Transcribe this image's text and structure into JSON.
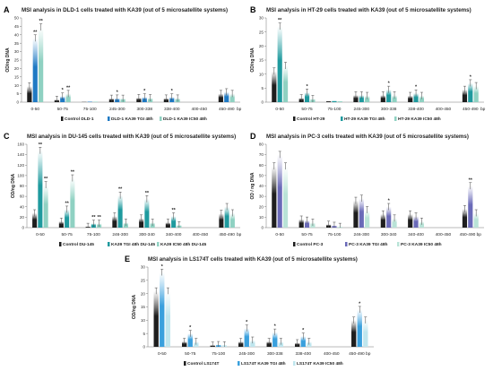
{
  "chart_data": [
    {
      "panel": "A",
      "type": "bar",
      "title": "MSI analysis in DLD-1 cells treated with KA39 (out of 5 microsatellite systems)",
      "ylabel": "OD/ng DNA",
      "xunit": "bp",
      "ylim": [
        0,
        50
      ],
      "yticks": [
        "0",
        "5",
        "10",
        "15",
        "20",
        "25",
        "30",
        "35",
        "40",
        "45",
        "50"
      ],
      "categories": [
        "0-50",
        "50-75",
        "75-100",
        "245-300",
        "300-338",
        "338-400",
        "400-450",
        "450-490"
      ],
      "series": [
        {
          "name": "Control DLD-1",
          "values": [
            9.5,
            1.5,
            0.2,
            2.2,
            2.6,
            2.3,
            0,
            5.0
          ]
        },
        {
          "name": "DLD-1 KA39 TGI 48h",
          "values": [
            38,
            3.5,
            0.3,
            2.3,
            3.0,
            3.0,
            0,
            6.0
          ]
        },
        {
          "name": "DLD-1 KA39 IC50 48h",
          "values": [
            44.5,
            5.0,
            0.3,
            2.2,
            2.5,
            2.3,
            0,
            5.0
          ]
        }
      ],
      "annotations": [
        {
          "cat": 0,
          "series": 1,
          "text": "**"
        },
        {
          "cat": 0,
          "series": 2,
          "text": "**"
        },
        {
          "cat": 1,
          "series": 1,
          "text": "*"
        },
        {
          "cat": 1,
          "series": 2,
          "text": "**"
        },
        {
          "cat": 3,
          "series": 1,
          "text": "*"
        },
        {
          "cat": 4,
          "series": 1,
          "text": "*"
        },
        {
          "cat": 5,
          "series": 1,
          "text": "*"
        }
      ],
      "colors": [
        "#1e1e1e",
        "#1f7ac4",
        "#8fd1c2"
      ]
    },
    {
      "panel": "B",
      "type": "bar",
      "title": "MSI analysis in HT-29 cells treated with KA39 (out of 5 microsatellite systems)",
      "ylabel": "OD/ng DNA",
      "xunit": "bp",
      "ylim": [
        0,
        30
      ],
      "yticks": [
        "0",
        "5",
        "10",
        "15",
        "20",
        "25",
        "30"
      ],
      "categories": [
        "0-50",
        "50-75",
        "75-100",
        "245-300",
        "300-338",
        "338-400",
        "400-450",
        "450-490"
      ],
      "series": [
        {
          "name": "Control HT-29",
          "values": [
            11,
            1.5,
            0.4,
            2.5,
            2.5,
            2.3,
            0,
            4.5
          ]
        },
        {
          "name": "HT-29 KA39 TGI 48h",
          "values": [
            27,
            3.5,
            0.5,
            2.5,
            4.5,
            3.2,
            0,
            6.8
          ]
        },
        {
          "name": "HT-29 KA39 IC50 48h",
          "values": [
            13,
            1.2,
            0.4,
            2.3,
            2.5,
            2.3,
            0,
            5.8
          ]
        }
      ],
      "annotations": [
        {
          "cat": 0,
          "series": 1,
          "text": "**"
        },
        {
          "cat": 1,
          "series": 1,
          "text": "*"
        },
        {
          "cat": 4,
          "series": 1,
          "text": "*"
        },
        {
          "cat": 5,
          "series": 1,
          "text": "*"
        },
        {
          "cat": 7,
          "series": 1,
          "text": "*"
        }
      ],
      "colors": [
        "#1e1e1e",
        "#1f9a9e",
        "#8fd1c2"
      ]
    },
    {
      "panel": "C",
      "type": "bar",
      "title": "MSI analysis in DU-145 cells treated with KA39 (out of 5 microsatellite systems)",
      "ylabel": "OD/ng DNA",
      "xunit": "bp",
      "ylim": [
        0,
        160
      ],
      "yticks": [
        "0",
        "20",
        "40",
        "60",
        "80",
        "100",
        "120",
        "140",
        "160"
      ],
      "categories": [
        "0-50",
        "50-75",
        "75-100",
        "246-300",
        "300-340",
        "340-400",
        "400-450",
        "450-490"
      ],
      "series": [
        {
          "name": "Control DU-145",
          "values": [
            28,
            12,
            2,
            22,
            18,
            10,
            0,
            27
          ]
        },
        {
          "name": "KA39 TGI 48h DU-145",
          "values": [
            148,
            35,
            8,
            62,
            55,
            22,
            0,
            40
          ]
        },
        {
          "name": "KA39 IC50 48h DU-145",
          "values": [
            82,
            95,
            8,
            10,
            10,
            5,
            0,
            28
          ]
        }
      ],
      "annotations": [
        {
          "cat": 0,
          "series": 1,
          "text": "**"
        },
        {
          "cat": 0,
          "series": 2,
          "text": "**"
        },
        {
          "cat": 1,
          "series": 1,
          "text": "**"
        },
        {
          "cat": 1,
          "series": 2,
          "text": "**"
        },
        {
          "cat": 2,
          "series": 1,
          "text": "**"
        },
        {
          "cat": 2,
          "series": 2,
          "text": "**"
        },
        {
          "cat": 3,
          "series": 1,
          "text": "**"
        },
        {
          "cat": 4,
          "series": 1,
          "text": "**"
        },
        {
          "cat": 5,
          "series": 1,
          "text": "**"
        }
      ],
      "colors": [
        "#1e1e1e",
        "#1f9a9e",
        "#8fd1c2"
      ]
    },
    {
      "panel": "D",
      "type": "bar",
      "title": "MSI analysis in PC-3 cells treated with KA39 (out of 5 microsatellite systems)",
      "ylabel": "OD / ng DNA",
      "xunit": "",
      "ylim": [
        0,
        80
      ],
      "yticks": [
        "0",
        "10",
        "20",
        "30",
        "40",
        "50",
        "60",
        "70",
        "80"
      ],
      "categories": [
        "0-50",
        "50-75",
        "75-100",
        "246-300",
        "300-340",
        "340-400",
        "400-450",
        "450-490 bp"
      ],
      "series": [
        {
          "name": "Control PC-3",
          "values": [
            59,
            8,
            3,
            26,
            13,
            13,
            0,
            18
          ]
        },
        {
          "name": "PC-3 KA39 TGI 48h",
          "values": [
            70,
            7,
            2,
            28,
            20,
            11,
            0,
            40
          ]
        },
        {
          "name": "PC-3 KA39 IC50 48h",
          "values": [
            59,
            5,
            1,
            17,
            9,
            6,
            0,
            14
          ]
        }
      ],
      "annotations": [
        {
          "cat": 4,
          "series": 1,
          "text": "*"
        },
        {
          "cat": 7,
          "series": 1,
          "text": "**"
        }
      ],
      "colors": [
        "#1e1e1e",
        "#6a6ab8",
        "#b9e3d7"
      ]
    },
    {
      "panel": "E",
      "type": "bar",
      "title": "MSI analysis in LS174T cells treated with KA39 (out of 5 microsatellite systems)",
      "ylabel": "OD/ng DNA",
      "xunit": "",
      "ylim": [
        0,
        30
      ],
      "yticks": [
        "0",
        "5",
        "10",
        "15",
        "20",
        "25",
        "30"
      ],
      "categories": [
        "0-50",
        "50-75",
        "75-100",
        "245-300",
        "300-338",
        "338-400",
        "400-450",
        "450-490 bp"
      ],
      "series": [
        {
          "name": "Control LS174T",
          "values": [
            21,
            2,
            0.6,
            2,
            2,
            1.5,
            0,
            10
          ]
        },
        {
          "name": "LS174T KA39 TGI 48h",
          "values": [
            28,
            5,
            0.8,
            7,
            5.5,
            4,
            0,
            14
          ]
        },
        {
          "name": "LS174T KA39 IC50 48h",
          "values": [
            21,
            2,
            0.7,
            2.5,
            2,
            2,
            0,
            10
          ]
        }
      ],
      "annotations": [
        {
          "cat": 0,
          "series": 1,
          "text": "*"
        },
        {
          "cat": 1,
          "series": 1,
          "text": "*"
        },
        {
          "cat": 3,
          "series": 1,
          "text": "*"
        },
        {
          "cat": 4,
          "series": 1,
          "text": "*"
        },
        {
          "cat": 5,
          "series": 1,
          "text": "*"
        },
        {
          "cat": 7,
          "series": 1,
          "text": "*"
        }
      ],
      "colors": [
        "#1e1e1e",
        "#3aa0dd",
        "#bfe6ee"
      ]
    }
  ]
}
